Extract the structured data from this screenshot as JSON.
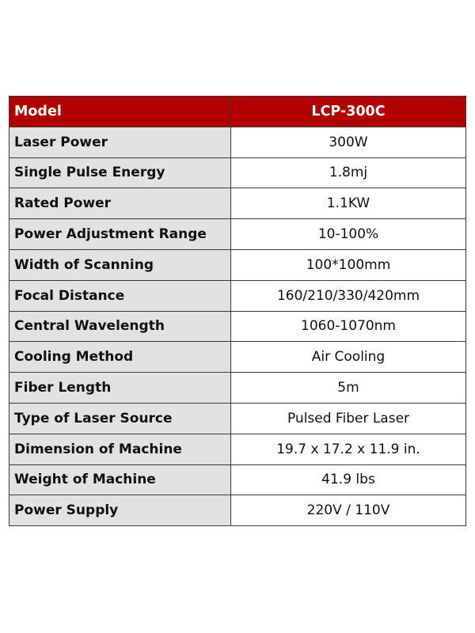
{
  "header": {
    "label": "Model",
    "value": "LCP-300C"
  },
  "rows": [
    {
      "label": "Laser Power",
      "value": "300W"
    },
    {
      "label": "Single Pulse Energy",
      "value": "1.8mj"
    },
    {
      "label": "Rated Power",
      "value": "1.1KW"
    },
    {
      "label": "Power Adjustment Range",
      "value": "10-100%"
    },
    {
      "label": "Width of Scanning",
      "value": "100*100mm"
    },
    {
      "label": "Focal Distance",
      "value": "160/210/330/420mm"
    },
    {
      "label": "Central Wavelength",
      "value": "1060-1070nm"
    },
    {
      "label": "Cooling Method",
      "value": "Air Cooling"
    },
    {
      "label": "Fiber Length",
      "value": "5m"
    },
    {
      "label": "Type of Laser Source",
      "value": "Pulsed Fiber Laser"
    },
    {
      "label": "Dimension of Machine",
      "value": "19.7 x 17.2 x 11.9 in."
    },
    {
      "label": "Weight of Machine",
      "value": "41.9 lbs"
    },
    {
      "label": "Power Supply",
      "value": "220V / 110V"
    }
  ],
  "colors": {
    "header_bg": "#b30000",
    "label_bg": "#e2e2e2",
    "value_bg": "#ffffff"
  }
}
